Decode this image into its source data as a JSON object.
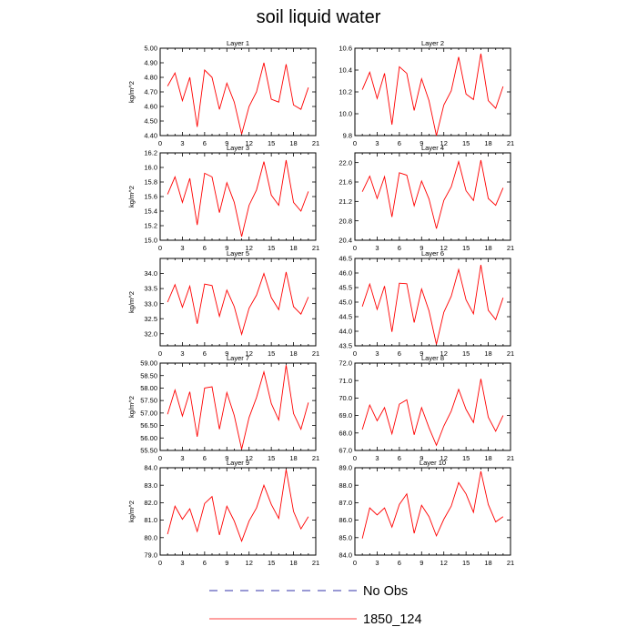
{
  "title": "soil liquid water",
  "chart_data": [
    {
      "type": "line",
      "title": "Layer 1",
      "ylabel": "kg/m^2",
      "x": [
        1,
        2,
        3,
        4,
        5,
        6,
        7,
        8,
        9,
        10,
        11,
        12,
        13,
        14,
        15,
        16,
        17,
        18,
        19,
        20
      ],
      "series": [
        {
          "name": "1850_124",
          "values": [
            4.74,
            4.83,
            4.64,
            4.8,
            4.46,
            4.85,
            4.8,
            4.58,
            4.76,
            4.63,
            4.41,
            4.6,
            4.7,
            4.9,
            4.65,
            4.63,
            4.89,
            4.61,
            4.58,
            4.73
          ]
        }
      ],
      "xlim": [
        0,
        21
      ],
      "xticks": [
        "0",
        "3",
        "6",
        "9",
        "12",
        "15",
        "18",
        "21"
      ],
      "ylim": [
        4.4,
        5.0
      ],
      "yticks": [
        "4.40",
        "4.50",
        "4.60",
        "4.70",
        "4.80",
        "4.90",
        "5.00"
      ]
    },
    {
      "type": "line",
      "title": "Layer 2",
      "ylabel": "",
      "x": [
        1,
        2,
        3,
        4,
        5,
        6,
        7,
        8,
        9,
        10,
        11,
        12,
        13,
        14,
        15,
        16,
        17,
        18,
        19,
        20
      ],
      "series": [
        {
          "name": "1850_124",
          "values": [
            10.22,
            10.38,
            10.14,
            10.37,
            9.9,
            10.43,
            10.37,
            10.03,
            10.32,
            10.12,
            9.8,
            10.08,
            10.21,
            10.52,
            10.18,
            10.13,
            10.55,
            10.12,
            10.05,
            10.25
          ]
        }
      ],
      "xlim": [
        0,
        21
      ],
      "xticks": [
        "0",
        "3",
        "6",
        "9",
        "12",
        "15",
        "18",
        "21"
      ],
      "ylim": [
        9.8,
        10.6
      ],
      "yticks": [
        "9.8",
        "10.0",
        "10.2",
        "10.4",
        "10.6"
      ]
    },
    {
      "type": "line",
      "title": "Layer 3",
      "ylabel": "kg/m^2",
      "x": [
        1,
        2,
        3,
        4,
        5,
        6,
        7,
        8,
        9,
        10,
        11,
        12,
        13,
        14,
        15,
        16,
        17,
        18,
        19,
        20
      ],
      "series": [
        {
          "name": "1850_124",
          "values": [
            15.63,
            15.87,
            15.52,
            15.85,
            15.21,
            15.92,
            15.87,
            15.38,
            15.79,
            15.52,
            15.05,
            15.48,
            15.69,
            16.08,
            15.62,
            15.48,
            16.1,
            15.52,
            15.4,
            15.67
          ]
        }
      ],
      "xlim": [
        0,
        21
      ],
      "xticks": [
        "0",
        "3",
        "6",
        "9",
        "12",
        "15",
        "18",
        "21"
      ],
      "ylim": [
        15.0,
        16.2
      ],
      "yticks": [
        "15.0",
        "15.2",
        "15.4",
        "15.6",
        "15.8",
        "16.0",
        "16.2"
      ]
    },
    {
      "type": "line",
      "title": "Layer 4",
      "ylabel": "",
      "x": [
        1,
        2,
        3,
        4,
        5,
        6,
        7,
        8,
        9,
        10,
        11,
        12,
        13,
        14,
        15,
        16,
        17,
        18,
        19,
        20
      ],
      "series": [
        {
          "name": "1850_124",
          "values": [
            21.4,
            21.72,
            21.26,
            21.71,
            20.88,
            21.79,
            21.74,
            21.11,
            21.62,
            21.25,
            20.64,
            21.22,
            21.5,
            22.02,
            21.42,
            21.22,
            22.05,
            21.26,
            21.12,
            21.48
          ]
        }
      ],
      "xlim": [
        0,
        21
      ],
      "xticks": [
        "0",
        "3",
        "6",
        "9",
        "12",
        "15",
        "18",
        "21"
      ],
      "ylim": [
        20.4,
        22.2
      ],
      "yticks": [
        "20.4",
        "20.8",
        "21.2",
        "21.6",
        "22.0"
      ]
    },
    {
      "type": "line",
      "title": "Layer 5",
      "ylabel": "kg/m^2",
      "x": [
        1,
        2,
        3,
        4,
        5,
        6,
        7,
        8,
        9,
        10,
        11,
        12,
        13,
        14,
        15,
        16,
        17,
        18,
        19,
        20
      ],
      "series": [
        {
          "name": "1850_124",
          "values": [
            33.05,
            33.63,
            32.88,
            33.58,
            32.33,
            33.65,
            33.6,
            32.58,
            33.45,
            32.9,
            31.98,
            32.85,
            33.28,
            34.0,
            33.2,
            32.8,
            34.05,
            32.9,
            32.65,
            33.22
          ]
        }
      ],
      "xlim": [
        0,
        21
      ],
      "xticks": [
        "0",
        "3",
        "6",
        "9",
        "12",
        "15",
        "18",
        "21"
      ],
      "ylim": [
        31.6,
        34.5
      ],
      "yticks": [
        "32.0",
        "32.5",
        "33.0",
        "33.5",
        "34.0"
      ]
    },
    {
      "type": "line",
      "title": "Layer 6",
      "ylabel": "",
      "x": [
        1,
        2,
        3,
        4,
        5,
        6,
        7,
        8,
        9,
        10,
        11,
        12,
        13,
        14,
        15,
        16,
        17,
        18,
        19,
        20
      ],
      "series": [
        {
          "name": "1850_124",
          "values": [
            44.85,
            45.62,
            44.75,
            45.55,
            43.98,
            45.65,
            45.63,
            44.3,
            45.45,
            44.7,
            43.55,
            44.65,
            45.2,
            46.12,
            45.08,
            44.6,
            46.28,
            44.72,
            44.4,
            45.15
          ]
        }
      ],
      "xlim": [
        0,
        21
      ],
      "xticks": [
        "0",
        "3",
        "6",
        "9",
        "12",
        "15",
        "18",
        "21"
      ],
      "ylim": [
        43.5,
        46.5
      ],
      "yticks": [
        "43.5",
        "44.0",
        "44.5",
        "45.0",
        "45.5",
        "46.0",
        "46.5"
      ]
    },
    {
      "type": "line",
      "title": "Layer 7",
      "ylabel": "kg/m^2",
      "x": [
        1,
        2,
        3,
        4,
        5,
        6,
        7,
        8,
        9,
        10,
        11,
        12,
        13,
        14,
        15,
        16,
        17,
        18,
        19,
        20
      ],
      "series": [
        {
          "name": "1850_124",
          "values": [
            56.95,
            57.92,
            56.88,
            57.85,
            56.05,
            58.0,
            58.05,
            56.35,
            57.82,
            56.9,
            55.55,
            56.82,
            57.62,
            58.65,
            57.38,
            56.72,
            58.92,
            56.98,
            56.35,
            57.42
          ]
        }
      ],
      "xlim": [
        0,
        21
      ],
      "xticks": [
        "0",
        "3",
        "6",
        "9",
        "12",
        "15",
        "18",
        "21"
      ],
      "ylim": [
        55.5,
        59.0
      ],
      "yticks": [
        "55.50",
        "56.00",
        "56.50",
        "57.00",
        "57.50",
        "58.00",
        "58.50",
        "59.00"
      ]
    },
    {
      "type": "line",
      "title": "Layer 8",
      "ylabel": "",
      "x": [
        1,
        2,
        3,
        4,
        5,
        6,
        7,
        8,
        9,
        10,
        11,
        12,
        13,
        14,
        15,
        16,
        17,
        18,
        19,
        20
      ],
      "series": [
        {
          "name": "1850_124",
          "values": [
            68.2,
            69.6,
            68.7,
            69.45,
            67.95,
            69.65,
            69.9,
            67.9,
            69.45,
            68.3,
            67.3,
            68.4,
            69.25,
            70.5,
            69.35,
            68.6,
            71.1,
            68.9,
            68.1,
            69.0
          ]
        }
      ],
      "xlim": [
        0,
        21
      ],
      "xticks": [
        "0",
        "3",
        "6",
        "9",
        "12",
        "15",
        "18",
        "21"
      ],
      "ylim": [
        67.0,
        72.0
      ],
      "yticks": [
        "67.0",
        "68.0",
        "69.0",
        "70.0",
        "71.0",
        "72.0"
      ]
    },
    {
      "type": "line",
      "title": "Layer 9",
      "ylabel": "kg/m^2",
      "x": [
        1,
        2,
        3,
        4,
        5,
        6,
        7,
        8,
        9,
        10,
        11,
        12,
        13,
        14,
        15,
        16,
        17,
        18,
        19,
        20
      ],
      "series": [
        {
          "name": "1850_124",
          "values": [
            80.2,
            81.8,
            81.05,
            81.65,
            80.35,
            81.95,
            82.35,
            80.15,
            81.8,
            80.95,
            79.8,
            80.95,
            81.7,
            83.0,
            81.9,
            81.1,
            83.9,
            81.5,
            80.5,
            81.2
          ]
        }
      ],
      "xlim": [
        0,
        21
      ],
      "xticks": [
        "0",
        "3",
        "6",
        "9",
        "12",
        "15",
        "18",
        "21"
      ],
      "ylim": [
        79.0,
        84.0
      ],
      "yticks": [
        "79.0",
        "80.0",
        "81.0",
        "82.0",
        "83.0",
        "84.0"
      ]
    },
    {
      "type": "line",
      "title": "Layer 10",
      "ylabel": "",
      "x": [
        1,
        2,
        3,
        4,
        5,
        6,
        7,
        8,
        9,
        10,
        11,
        12,
        13,
        14,
        15,
        16,
        17,
        18,
        19,
        20
      ],
      "series": [
        {
          "name": "1850_124",
          "values": [
            84.95,
            86.7,
            86.3,
            86.7,
            85.6,
            86.9,
            87.5,
            85.25,
            86.85,
            86.2,
            85.1,
            86.05,
            86.8,
            88.15,
            87.5,
            86.45,
            88.8,
            86.9,
            85.9,
            86.2
          ]
        }
      ],
      "xlim": [
        0,
        21
      ],
      "xticks": [
        "0",
        "3",
        "6",
        "9",
        "12",
        "15",
        "18",
        "21"
      ],
      "ylim": [
        84.0,
        89.0
      ],
      "yticks": [
        "84.0",
        "85.0",
        "86.0",
        "87.0",
        "88.0",
        "89.0"
      ]
    }
  ],
  "legend": {
    "items": [
      {
        "label": "No Obs",
        "style": "dashed",
        "color": "#3333aa"
      },
      {
        "label": "1850_124",
        "style": "solid",
        "color": "#ff0000"
      }
    ]
  },
  "colors": {
    "series": "#ff0000",
    "axes": "#000000",
    "no_obs": "#3333aa"
  }
}
